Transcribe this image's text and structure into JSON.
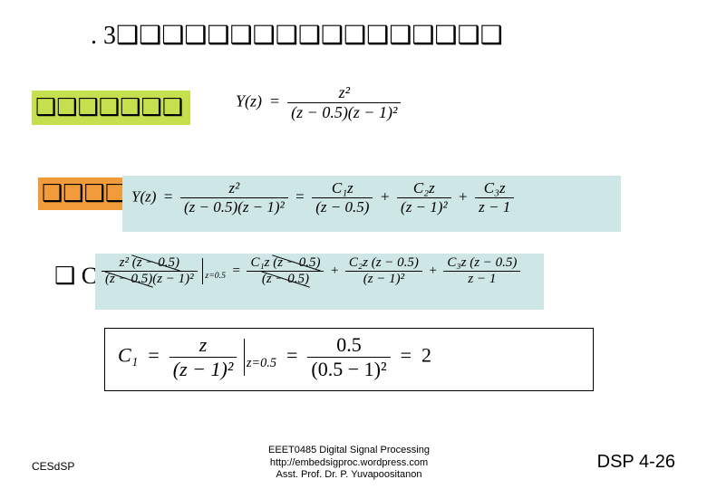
{
  "title": ". 3❑❑❑❑❑❑❑❑❑❑❑❑❑❑❑❑❑",
  "box_green": "❑❑❑❑❑❑❑",
  "box_orange": "❑❑❑❑❑",
  "box_small": "❑ C₁",
  "eq1": {
    "lhs": "Y(z)",
    "num": "z²",
    "den": "(z − 0.5)(z − 1)²"
  },
  "eq2": {
    "lhs": "Y(z)",
    "num1": "z²",
    "den1": "(z − 0.5)(z − 1)²",
    "t1n": "C₁z",
    "t1d": "(z − 0.5)",
    "t2n": "C₂z",
    "t2d": "(z − 1)²",
    "t3n": "C₃z",
    "t3d": "z − 1"
  },
  "eq3": {
    "lnum": "z² (z − 0.5)",
    "lden": "(z − 0.5)(z − 1)²",
    "eval": "z=0.5",
    "t1n": "C₁z (z − 0.5)",
    "t1d": "(z − 0.5)",
    "t2n": "C₂z (z − 0.5)",
    "t2d": "(z − 1)²",
    "t3n": "C₃z (z − 0.5)",
    "t3d": "z − 1"
  },
  "eq4": {
    "lhs": "C₁",
    "mnum": "z",
    "mden": "(z − 1)²",
    "meval": "z=0.5",
    "rnum": "0.5",
    "rden": "(0.5 − 1)²",
    "result": "2"
  },
  "footer": {
    "left": "CESdSP",
    "center_l1": "EEET0485 Digital Signal Processing",
    "center_l2": "http://embedsigproc.wordpress.com",
    "center_l3": "Asst. Prof. Dr. P. Yuvapoositanon",
    "right": "DSP 4-26"
  },
  "colors": {
    "green": "#c5e04e",
    "orange": "#f29b3a",
    "eq_bg": "#cfe6e6",
    "text": "#000000",
    "bg": "#ffffff"
  }
}
